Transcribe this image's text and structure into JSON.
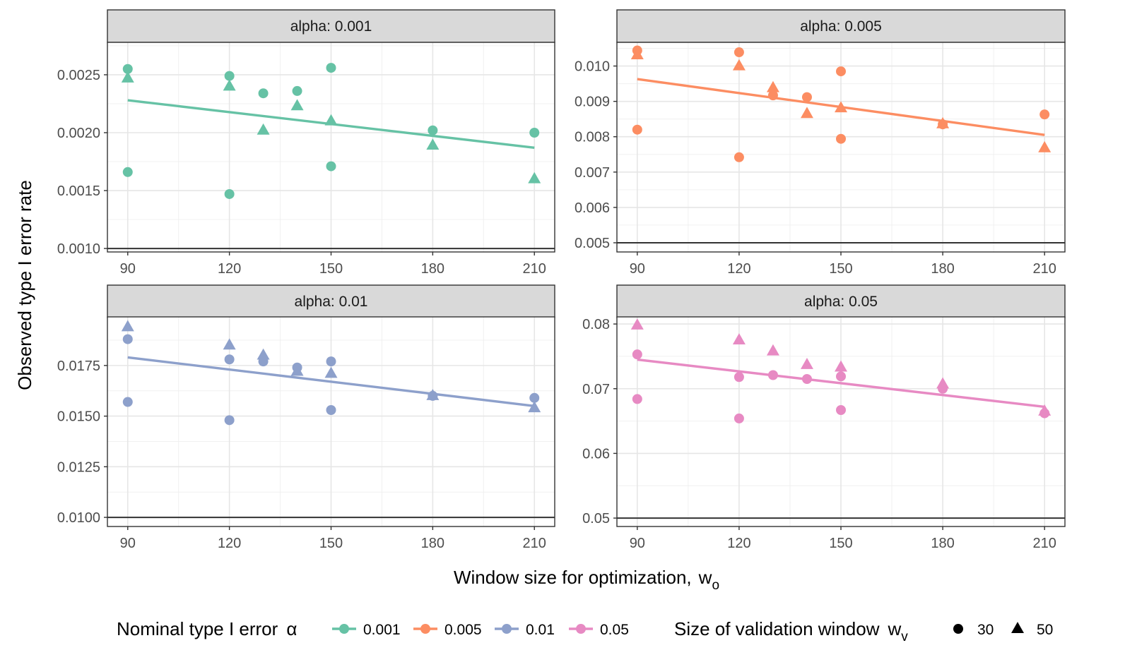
{
  "chart_data": {
    "type": "scatter",
    "layout": "facet-grid 2x2, free y scales",
    "xlabel": "Window size for optimization,",
    "xlabel_symbol": "w",
    "xlabel_subscript": "o",
    "ylabel": "Observed type I error rate",
    "x_ticks": [
      "90",
      "120",
      "150",
      "180",
      "210"
    ],
    "xlim": [
      84,
      216
    ],
    "grid": true,
    "panels": [
      {
        "strip": "alpha: 0.001",
        "color": "#66C2A5",
        "ylim": [
          0.00097,
          0.00278
        ],
        "y_ticks": [
          "0.0010",
          "0.0015",
          "0.0020",
          "0.0025"
        ],
        "y_tick_values": [
          0.001,
          0.0015,
          0.002,
          0.0025
        ],
        "trend": [
          [
            90,
            0.00228
          ],
          [
            210,
            0.00187
          ]
        ],
        "points": {
          "30": [
            [
              90,
              0.00255
            ],
            [
              90,
              0.00166
            ],
            [
              120,
              0.00249
            ],
            [
              120,
              0.00147
            ],
            [
              130,
              0.00234
            ],
            [
              140,
              0.00236
            ],
            [
              150,
              0.00256
            ],
            [
              150,
              0.00171
            ],
            [
              180,
              0.00202
            ],
            [
              210,
              0.002
            ]
          ],
          "50": [
            [
              90,
              0.00247
            ],
            [
              120,
              0.0024
            ],
            [
              130,
              0.00202
            ],
            [
              140,
              0.00223
            ],
            [
              150,
              0.0021
            ],
            [
              180,
              0.00189
            ],
            [
              210,
              0.0016
            ]
          ]
        }
      },
      {
        "strip": "alpha: 0.005",
        "color": "#FC8D62",
        "ylim": [
          0.00474,
          0.01067
        ],
        "y_ticks": [
          "0.005",
          "0.006",
          "0.007",
          "0.008",
          "0.009",
          "0.010"
        ],
        "y_tick_values": [
          0.005,
          0.006,
          0.007,
          0.008,
          0.009,
          0.01
        ],
        "trend": [
          [
            90,
            0.00963
          ],
          [
            210,
            0.00805
          ]
        ],
        "points": {
          "30": [
            [
              90,
              0.01044
            ],
            [
              90,
              0.0082
            ],
            [
              120,
              0.01039
            ],
            [
              120,
              0.00742
            ],
            [
              130,
              0.00917
            ],
            [
              140,
              0.00912
            ],
            [
              150,
              0.00985
            ],
            [
              150,
              0.00794
            ],
            [
              180,
              0.00835
            ],
            [
              210,
              0.00863
            ]
          ],
          "50": [
            [
              90,
              0.01031
            ],
            [
              120,
              0.01
            ],
            [
              130,
              0.00938
            ],
            [
              140,
              0.00865
            ],
            [
              150,
              0.00881
            ],
            [
              180,
              0.00836
            ],
            [
              210,
              0.00768
            ]
          ]
        }
      },
      {
        "strip": "alpha: 0.01",
        "color": "#8DA0CB",
        "ylim": [
          0.00955,
          0.0199
        ],
        "y_ticks": [
          "0.0100",
          "0.0125",
          "0.0150",
          "0.0175"
        ],
        "y_tick_values": [
          0.01,
          0.0125,
          0.015,
          0.0175
        ],
        "trend": [
          [
            90,
            0.0179
          ],
          [
            210,
            0.0155
          ]
        ],
        "points": {
          "30": [
            [
              90,
              0.0188
            ],
            [
              90,
              0.0157
            ],
            [
              120,
              0.0178
            ],
            [
              120,
              0.0148
            ],
            [
              130,
              0.0177
            ],
            [
              140,
              0.0174
            ],
            [
              150,
              0.0177
            ],
            [
              150,
              0.0153
            ],
            [
              180,
              0.016
            ],
            [
              210,
              0.0159
            ]
          ],
          "50": [
            [
              90,
              0.0194
            ],
            [
              120,
              0.0185
            ],
            [
              130,
              0.018
            ],
            [
              140,
              0.0172
            ],
            [
              150,
              0.0171
            ],
            [
              180,
              0.016
            ],
            [
              210,
              0.0154
            ]
          ]
        }
      },
      {
        "strip": "alpha: 0.05",
        "color": "#E78AC3",
        "ylim": [
          0.0487,
          0.0811
        ],
        "y_ticks": [
          "0.05",
          "0.06",
          "0.07",
          "0.08"
        ],
        "y_tick_values": [
          0.05,
          0.06,
          0.07,
          0.08
        ],
        "trend": [
          [
            90,
            0.0745
          ],
          [
            210,
            0.0672
          ]
        ],
        "points": {
          "30": [
            [
              90,
              0.0753
            ],
            [
              90,
              0.0684
            ],
            [
              120,
              0.0718
            ],
            [
              120,
              0.0654
            ],
            [
              130,
              0.0721
            ],
            [
              140,
              0.0715
            ],
            [
              150,
              0.0719
            ],
            [
              150,
              0.0667
            ],
            [
              180,
              0.07
            ],
            [
              210,
              0.0662
            ]
          ],
          "50": [
            [
              90,
              0.0798
            ],
            [
              120,
              0.0775
            ],
            [
              130,
              0.0758
            ],
            [
              140,
              0.0737
            ],
            [
              150,
              0.0733
            ],
            [
              180,
              0.0707
            ],
            [
              210,
              0.0665
            ]
          ]
        }
      }
    ],
    "legend": {
      "placement": "bottom",
      "color_title": "Nominal type I error",
      "color_symbol": "α",
      "color_items": [
        {
          "label": "0.001",
          "color": "#66C2A5"
        },
        {
          "label": "0.005",
          "color": "#FC8D62"
        },
        {
          "label": "0.01",
          "color": "#8DA0CB"
        },
        {
          "label": "0.05",
          "color": "#E78AC3"
        }
      ],
      "shape_title": "Size of validation window",
      "shape_symbol": "w",
      "shape_subscript": "v",
      "shape_items": [
        {
          "label": "30",
          "shape": "circle"
        },
        {
          "label": "50",
          "shape": "triangle"
        }
      ]
    }
  }
}
